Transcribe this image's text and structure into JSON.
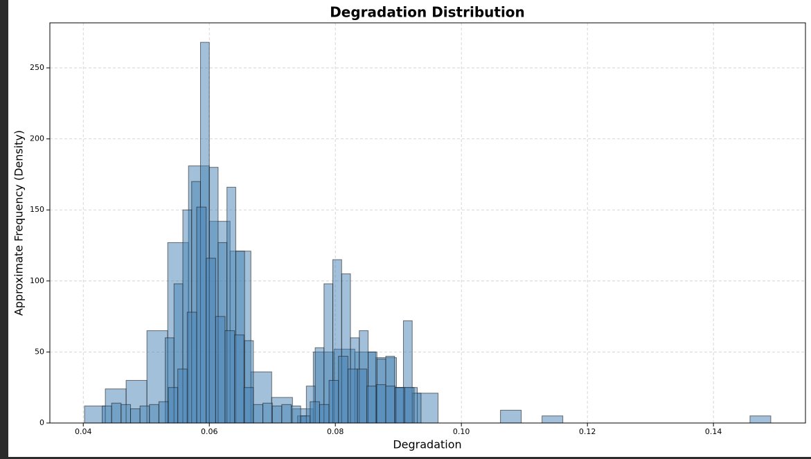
{
  "chart_data": {
    "type": "histogram",
    "title": "Degradation Distribution",
    "x_label": "Degradation",
    "y_label": "Approximate Frequency (Density)",
    "xlim": [
      0.0347,
      0.1546
    ],
    "ylim": [
      0,
      281.7
    ],
    "xticks": [
      0.04,
      0.06,
      0.08,
      {
        "value": 0.1,
        "label": "0.10"
      },
      0.12,
      0.14
    ],
    "yticks": [
      0,
      50,
      100,
      150,
      200,
      250
    ],
    "grid": true,
    "series": [
      {
        "color": "#4682b4",
        "bins": [
          0.0402,
          0.0435,
          0.0468,
          0.0501,
          0.0534,
          0.0567,
          0.06,
          0.0633,
          0.0666,
          0.0699,
          0.0732,
          0.0765,
          0.0798,
          0.0831,
          0.0864,
          0.0897,
          0.093,
          0.0963,
          0.0996,
          0.1029,
          0.1062,
          0.1095,
          0.1128,
          0.1161,
          0.1194,
          0.1227,
          0.126,
          0.1293,
          0.1326,
          0.1359,
          0.1392,
          0.1425,
          0.1458,
          0.1491
        ],
        "counts": [
          12,
          24,
          30,
          65,
          127,
          181,
          142,
          121,
          36,
          18,
          10,
          50,
          52,
          50,
          46,
          25,
          21,
          0,
          0,
          0,
          9,
          0,
          5,
          0,
          0,
          0,
          0,
          0,
          0,
          0,
          0,
          0,
          5
        ]
      },
      {
        "color": "#4682b4",
        "bins": [
          0.053,
          0.0544,
          0.0558,
          0.0572,
          0.0586,
          0.06,
          0.0614,
          0.0628,
          0.0642,
          0.0656,
          0.067
        ],
        "counts": [
          60,
          98,
          150,
          170,
          268,
          180,
          127,
          166,
          121,
          58
        ]
      },
      {
        "color": "#4682b4",
        "bins": [
          0.074,
          0.0754,
          0.0768,
          0.0782,
          0.0796,
          0.081,
          0.0824,
          0.0838,
          0.0852,
          0.0866,
          0.088,
          0.0894,
          0.0908,
          0.0922,
          0.0936
        ],
        "counts": [
          5,
          26,
          53,
          98,
          115,
          105,
          60,
          65,
          50,
          45,
          47,
          25,
          72,
          21
        ]
      },
      {
        "color": "#4682b4",
        "bins": [
          0.043,
          0.0445,
          0.046,
          0.0475,
          0.049,
          0.0505,
          0.052,
          0.0535,
          0.055,
          0.0565,
          0.058,
          0.0595,
          0.061,
          0.0625,
          0.064,
          0.0655,
          0.067,
          0.0685,
          0.07,
          0.0715,
          0.073,
          0.0745,
          0.076,
          0.0775,
          0.079,
          0.0805,
          0.082,
          0.0835,
          0.085,
          0.0865,
          0.088,
          0.0895,
          0.091,
          0.0925
        ],
        "counts": [
          12,
          14,
          13,
          10,
          12,
          13,
          15,
          25,
          38,
          78,
          152,
          116,
          75,
          65,
          62,
          25,
          13,
          14,
          12,
          13,
          12,
          5,
          15,
          13,
          30,
          47,
          38,
          38,
          26,
          27,
          26,
          25,
          25
        ]
      }
    ]
  }
}
